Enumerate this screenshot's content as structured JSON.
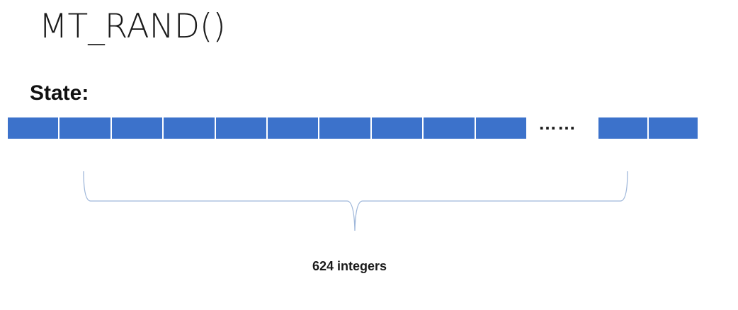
{
  "title": "MT_RAND()",
  "state_label": "State:",
  "cell_color": "#3C72CB",
  "cells_left_count": 10,
  "cells_right_count": 2,
  "ellipsis": "……",
  "brace_color": "#9FB7DA",
  "brace_label": "624 integers"
}
